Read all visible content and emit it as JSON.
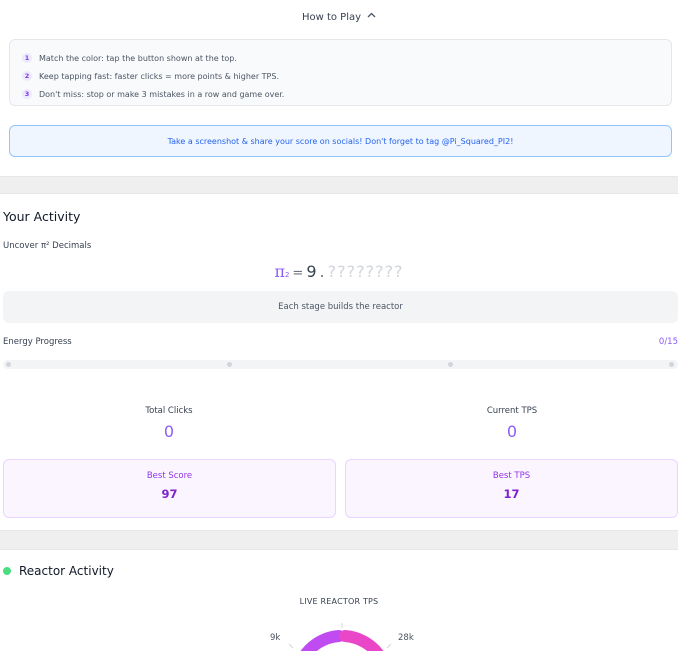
{
  "how_to_play": {
    "title": "How to Play",
    "rules": [
      {
        "num": "1",
        "text": "Match the color: tap the button shown at the top."
      },
      {
        "num": "2",
        "text": "Keep tapping fast: faster clicks = more points & higher TPS."
      },
      {
        "num": "3",
        "text": "Don't miss: stop or make 3 mistakes in a row and game over."
      }
    ]
  },
  "share_banner": "Take a screenshot & share your score on socials! Don't forget to tag @Pi_Squared_PI2!",
  "activity": {
    "title": "Your Activity",
    "uncover_label": "Uncover π² Decimals",
    "pi_symbol": "π",
    "pi_sup": "2",
    "equals": "=",
    "pi_integer": "9",
    "pi_dot": ".",
    "pi_hidden_decimals": "????????",
    "stage_text": "Each stage builds the reactor",
    "energy_label": "Energy Progress",
    "energy_count": "0/15",
    "energy_progress": 0
  },
  "stats": {
    "total_clicks_label": "Total Clicks",
    "total_clicks_value": "0",
    "current_tps_label": "Current TPS",
    "current_tps_value": "0",
    "best_score_label": "Best Score",
    "best_score_value": "97",
    "best_tps_label": "Best TPS",
    "best_tps_value": "17"
  },
  "reactor": {
    "title": "Reactor Activity",
    "live_label": "LIVE REACTOR TPS",
    "tick_left": "9k",
    "tick_right": "28k"
  },
  "colors": {
    "accent": "#8b5cf6",
    "gauge_purple": "#c04bf0",
    "gauge_pink": "#e946c8",
    "live_green": "#4ade80"
  }
}
